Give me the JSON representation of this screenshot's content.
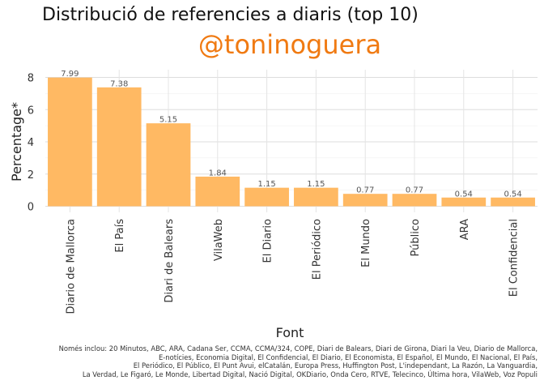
{
  "title": "Distribució de referencies a diaris (top 10)",
  "subtitle": "@toninoguera",
  "chart_data": {
    "type": "bar",
    "categories": [
      "Diario de Mallorca",
      "El País",
      "Diari de Balears",
      "VilaWeb",
      "El Diario",
      "El Periódico",
      "El Mundo",
      "Público",
      "ARA",
      "El Confidencial"
    ],
    "values": [
      7.99,
      7.38,
      5.15,
      1.84,
      1.15,
      1.15,
      0.77,
      0.77,
      0.54,
      0.54
    ],
    "data_labels": [
      "7.99",
      "7.38",
      "5.15",
      "1.84",
      "1.15",
      "1.15",
      "0.77",
      "0.77",
      "0.54",
      "0.54"
    ],
    "xlabel": "Font",
    "ylabel": "Percentage*",
    "ylim": [
      0,
      8.4
    ],
    "yticks": [
      0,
      2,
      4,
      6,
      8
    ],
    "grid": true,
    "bar_color": "#FFB963"
  },
  "note_lines": [
    "Només inclou: 20 Minutos, ABC, ARA, Cadana Ser, CCMA, CCMA/324, COPE, Diari de Balears, Diari de Girona, Diari la Veu, Diario de Mallorca,",
    "E-notícies, Economia Digital, El Confidencial, El Diario, El Economista, El Español, El Mundo, El Nacional, El País,",
    "El Periódico, El Público, El Punt Avui, elCatalán, Europa Press, Huffington Post, L'independant, La Razón, La Vanguardia,",
    "La Verdad, Le Figaró, Le Monde, Libertad Digital, Nació Digital, OKDiario, Onda Cero, RTVE, Telecinco, Última hora, VilaWeb, Voz Populi"
  ]
}
